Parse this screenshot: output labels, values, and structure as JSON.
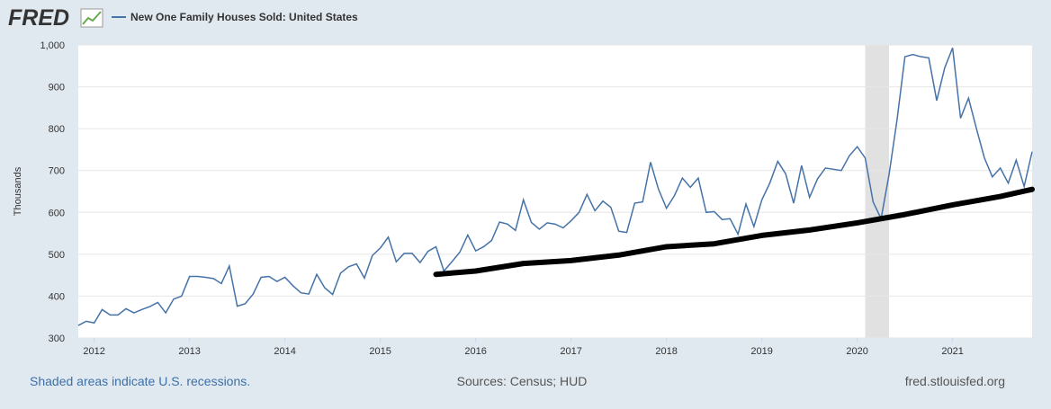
{
  "logo": "FRED",
  "chart_data": {
    "type": "line",
    "series": [
      {
        "name": "New One Family Houses Sold: United States",
        "color": "#4572a7",
        "x": [
          "2011-11",
          "2011-12",
          "2012-01",
          "2012-02",
          "2012-03",
          "2012-04",
          "2012-05",
          "2012-06",
          "2012-07",
          "2012-08",
          "2012-09",
          "2012-10",
          "2012-11",
          "2012-12",
          "2013-01",
          "2013-02",
          "2013-03",
          "2013-04",
          "2013-05",
          "2013-06",
          "2013-07",
          "2013-08",
          "2013-09",
          "2013-10",
          "2013-11",
          "2013-12",
          "2014-01",
          "2014-02",
          "2014-03",
          "2014-04",
          "2014-05",
          "2014-06",
          "2014-07",
          "2014-08",
          "2014-09",
          "2014-10",
          "2014-11",
          "2014-12",
          "2015-01",
          "2015-02",
          "2015-03",
          "2015-04",
          "2015-05",
          "2015-06",
          "2015-07",
          "2015-08",
          "2015-09",
          "2015-10",
          "2015-11",
          "2015-12",
          "2016-01",
          "2016-02",
          "2016-03",
          "2016-04",
          "2016-05",
          "2016-06",
          "2016-07",
          "2016-08",
          "2016-09",
          "2016-10",
          "2016-11",
          "2016-12",
          "2017-01",
          "2017-02",
          "2017-03",
          "2017-04",
          "2017-05",
          "2017-06",
          "2017-07",
          "2017-08",
          "2017-09",
          "2017-10",
          "2017-11",
          "2017-12",
          "2018-01",
          "2018-02",
          "2018-03",
          "2018-04",
          "2018-05",
          "2018-06",
          "2018-07",
          "2018-08",
          "2018-09",
          "2018-10",
          "2018-11",
          "2018-12",
          "2019-01",
          "2019-02",
          "2019-03",
          "2019-04",
          "2019-05",
          "2019-06",
          "2019-07",
          "2019-08",
          "2019-09",
          "2019-10",
          "2019-11",
          "2019-12",
          "2020-01",
          "2020-02",
          "2020-03",
          "2020-04",
          "2020-05",
          "2020-06",
          "2020-07",
          "2020-08",
          "2020-09",
          "2020-10",
          "2020-11",
          "2020-12",
          "2021-01",
          "2021-02",
          "2021-03",
          "2021-04",
          "2021-05",
          "2021-06",
          "2021-07",
          "2021-08",
          "2021-09",
          "2021-10",
          "2021-11"
        ],
        "values": [
          330,
          340,
          336,
          368,
          355,
          355,
          370,
          360,
          368,
          375,
          385,
          360,
          393,
          400,
          447,
          447,
          445,
          442,
          430,
          472,
          376,
          382,
          405,
          445,
          447,
          435,
          445,
          425,
          408,
          405,
          452,
          420,
          404,
          455,
          470,
          477,
          443,
          497,
          515,
          541,
          482,
          502,
          502,
          480,
          507,
          518,
          460,
          482,
          505,
          546,
          508,
          518,
          533,
          577,
          572,
          557,
          630,
          576,
          560,
          575,
          572,
          563,
          580,
          600,
          643,
          604,
          627,
          612,
          555,
          552,
          622,
          625,
          720,
          655,
          610,
          640,
          682,
          660,
          682,
          600,
          602,
          583,
          585,
          548,
          620,
          566,
          630,
          670,
          722,
          692,
          622,
          712,
          636,
          680,
          706,
          703,
          700,
          735,
          757,
          730,
          625,
          585,
          690,
          820,
          972,
          977,
          972,
          969,
          867,
          945,
          993,
          825,
          873,
          800,
          730,
          685,
          706,
          670,
          725,
          662,
          745
        ]
      }
    ],
    "annotation_line": {
      "color": "#000000",
      "x": [
        "2015-08",
        "2016-01",
        "2016-07",
        "2017-01",
        "2017-07",
        "2018-01",
        "2018-07",
        "2019-01",
        "2019-07",
        "2020-01",
        "2020-07",
        "2021-01",
        "2021-07",
        "2021-11"
      ],
      "values": [
        452,
        460,
        478,
        485,
        498,
        518,
        525,
        545,
        558,
        575,
        595,
        618,
        638,
        655
      ]
    },
    "recessions": [
      [
        "2020-02",
        "2020-04"
      ]
    ],
    "xlim": [
      "2011-11",
      "2021-11"
    ],
    "xticks": [
      2012,
      2013,
      2014,
      2015,
      2016,
      2017,
      2018,
      2019,
      2020,
      2021
    ],
    "ylim": [
      300,
      1000
    ],
    "yticks": [
      300,
      400,
      500,
      600,
      700,
      800,
      900,
      {
        "value": 1000,
        "label": "1,000"
      }
    ],
    "ylabel": "Thousands",
    "grid": true,
    "recession_note": "Shaded areas indicate U.S. recessions.",
    "source": "Sources: Census; HUD",
    "site": "fred.stlouisfed.org"
  }
}
